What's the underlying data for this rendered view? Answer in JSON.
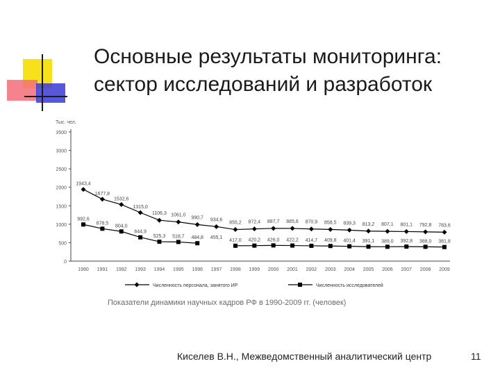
{
  "slide": {
    "title_line1": "Основные  результаты мониторинга:",
    "title_line2": "сектор исследований и разработок",
    "caption": "Показатели динамики научных кадров РФ в 1990-2009 гг. (человек)",
    "footer": "Киселев В.Н., Межведомственный аналитический центр",
    "page_number": "11"
  },
  "colors": {
    "deco_yellow": "#f7e11c",
    "deco_red": "#f26d7a",
    "deco_blue": "#3a3ad6",
    "line": "#000000"
  },
  "chart_data": {
    "type": "line",
    "ylabel": "Тыс. чел.",
    "ylim": [
      0,
      3500
    ],
    "yticks": [
      "0",
      "500",
      "1000",
      "1500",
      "2000",
      "2500",
      "3000",
      "3500"
    ],
    "categories": [
      "1990",
      "1991",
      "1992",
      "1993",
      "1994",
      "1995",
      "1996",
      "1997",
      "1998",
      "1999",
      "2000",
      "2001",
      "2002",
      "2003",
      "2004",
      "2005",
      "2006",
      "2007",
      "2008",
      "2009"
    ],
    "series": [
      {
        "name": "Численность персонала, занятого ИР",
        "marker": "diamond",
        "values": [
          1943.4,
          1677.8,
          1532.6,
          1315.0,
          1106.3,
          1061.0,
          990.7,
          934.6,
          855.2,
          872.4,
          887.7,
          885.6,
          870.9,
          858.5,
          839.3,
          813.2,
          807.1,
          801.1,
          792.8,
          783.6
        ],
        "labels": [
          "1943,4",
          "1677,8",
          "1532,6",
          "1315,0",
          "1106,3",
          "1061,0",
          "990,7",
          "934,6",
          "855,2",
          "872,4",
          "887,7",
          "885,6",
          "870,9",
          "858,5",
          "839,3",
          "813,2",
          "807,1",
          "801,1",
          "792,8",
          "783,6"
        ]
      },
      {
        "name": "Численность исследователей",
        "marker": "square",
        "values": [
          992.6,
          878.5,
          804.0,
          644.9,
          525.3,
          518.7,
          484.8,
          null,
          417.0,
          420.2,
          426.0,
          422.2,
          414.7,
          409.8,
          401.4,
          391.1,
          389.0,
          392.8,
          388.0,
          381.8
        ],
        "labels": [
          "992,6",
          "878,5",
          "804,0",
          "644,9",
          "525,3",
          "518,7",
          "484,8",
          "455,1",
          "417,0",
          "420,2",
          "426,0",
          "422,2",
          "414,7",
          "409,8",
          "401,4",
          "391,1",
          "389,0",
          "392,8",
          "388,0",
          "381,8"
        ]
      }
    ],
    "legend_position": "bottom",
    "grid": false
  }
}
